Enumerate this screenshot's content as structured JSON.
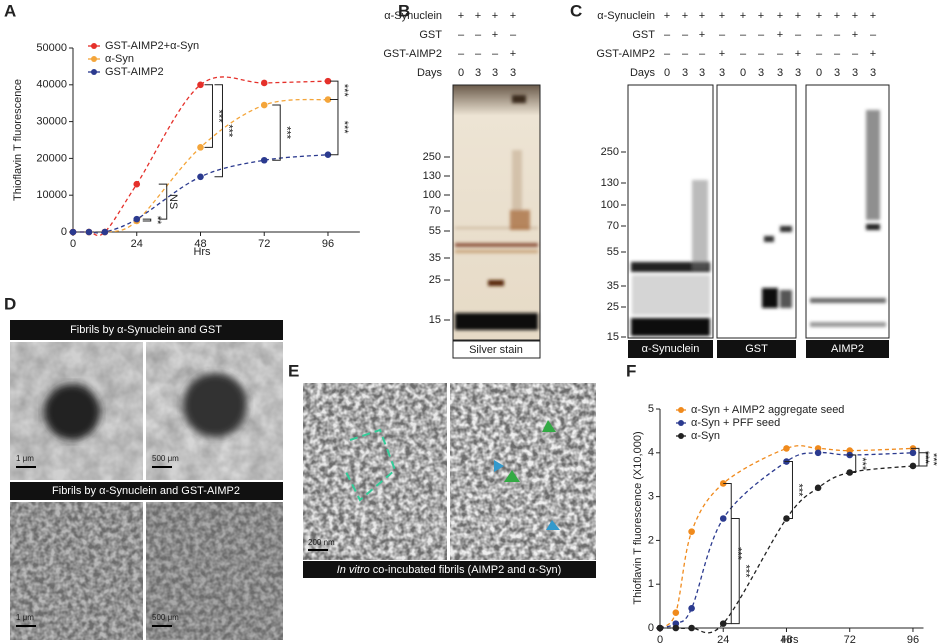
{
  "panels": [
    "A",
    "B",
    "C",
    "D",
    "E",
    "F"
  ],
  "chart_data": [
    {
      "type": "line",
      "x": [
        0,
        6,
        12,
        24,
        48,
        72,
        96
      ],
      "xlabel": "Hrs",
      "ylabel": "Thioflavin T fluorescence",
      "xlim": [
        0,
        108
      ],
      "ylim": [
        0,
        50000
      ],
      "xticks": [
        0,
        24,
        48,
        72,
        96
      ],
      "yticks": [
        0,
        10000,
        20000,
        30000,
        40000,
        50000
      ],
      "legend": "upper left",
      "series": [
        {
          "name": "GST-AIMP2+α-Syn",
          "color": "#e5302a",
          "values": [
            0,
            0,
            0,
            13000,
            40000,
            40500,
            41000
          ]
        },
        {
          "name": "α-Syn",
          "color": "#f4a53a",
          "values": [
            0,
            0,
            0,
            3000,
            23000,
            34500,
            36000
          ]
        },
        {
          "name": "GST-AIMP2",
          "color": "#2b3a8f",
          "values": [
            0,
            0,
            0,
            3500,
            15000,
            19500,
            21000
          ]
        }
      ],
      "annotations": [
        "NS",
        "**",
        "***",
        "***",
        "***",
        "***",
        "***"
      ]
    },
    {
      "type": "line",
      "x": [
        0,
        6,
        12,
        24,
        48,
        60,
        72,
        96
      ],
      "xlabel": "Hrs",
      "ylabel": "Thioflavin T fluorescence (X10,000)",
      "xlim": [
        0,
        100
      ],
      "ylim": [
        0,
        5
      ],
      "xticks": [
        0,
        24,
        48,
        72,
        96
      ],
      "yticks": [
        0,
        1,
        2,
        3,
        4,
        5
      ],
      "legend": "upper left",
      "series": [
        {
          "name": "α-Syn + AIMP2 aggregate seed",
          "color": "#f08a1c",
          "values": [
            0,
            0.35,
            2.2,
            3.3,
            4.1,
            4.1,
            4.05,
            4.1
          ]
        },
        {
          "name": "α-Syn + PFF seed",
          "color": "#2b3a8f",
          "values": [
            0,
            0.1,
            0.45,
            2.5,
            3.8,
            4.0,
            3.95,
            4.0
          ]
        },
        {
          "name": "α-Syn",
          "color": "#222222",
          "values": [
            0,
            0,
            0,
            0.1,
            2.5,
            3.2,
            3.55,
            3.7
          ]
        }
      ],
      "annotations": [
        "***",
        "***",
        "***",
        "***",
        "***",
        "***"
      ]
    }
  ],
  "blot_b": {
    "rows": [
      {
        "label": "α-Synuclein",
        "signs": [
          "+",
          "+",
          "+",
          "+"
        ]
      },
      {
        "label": "GST",
        "signs": [
          "–",
          "–",
          "+",
          "–"
        ]
      },
      {
        "label": "GST-AIMP2",
        "signs": [
          "–",
          "–",
          "–",
          "+"
        ]
      },
      {
        "label": "Days",
        "signs": [
          "0",
          "3",
          "3",
          "3"
        ]
      }
    ],
    "markers": [
      "250",
      "130",
      "100",
      "70",
      "55",
      "35",
      "25",
      "15"
    ],
    "caption": "Silver stain"
  },
  "blot_c": {
    "rows": [
      {
        "label": "α-Synuclein",
        "signs": [
          "+",
          "+",
          "+",
          "+",
          "+",
          "+",
          "+",
          "+",
          "+",
          "+",
          "+",
          "+"
        ]
      },
      {
        "label": "GST",
        "signs": [
          "–",
          "–",
          "+",
          "–",
          "–",
          "–",
          "+",
          "–",
          "–",
          "–",
          "+",
          "–"
        ]
      },
      {
        "label": "GST-AIMP2",
        "signs": [
          "–",
          "–",
          "–",
          "+",
          "–",
          "–",
          "–",
          "+",
          "–",
          "–",
          "–",
          "+"
        ]
      },
      {
        "label": "Days",
        "signs": [
          "0",
          "3",
          "3",
          "3",
          "0",
          "3",
          "3",
          "3",
          "0",
          "3",
          "3",
          "3"
        ]
      }
    ],
    "markers": [
      "250",
      "130",
      "100",
      "70",
      "55",
      "35",
      "25",
      "15"
    ],
    "captions": [
      "α-Synuclein",
      "GST",
      "AIMP2"
    ]
  },
  "em_d": {
    "top_title": "Fibrils by α-Synuclein and GST",
    "bottom_title": "Fibrils by α-Synuclein and GST-AIMP2",
    "scale_bars": [
      "1 μm",
      "500 μm",
      "1 μm",
      "500 μm"
    ]
  },
  "em_e": {
    "caption_italic": "In vitro",
    "caption": " co-incubated fibrils (AIMP2 and α-Syn)",
    "scale_bar": "200 nm"
  }
}
